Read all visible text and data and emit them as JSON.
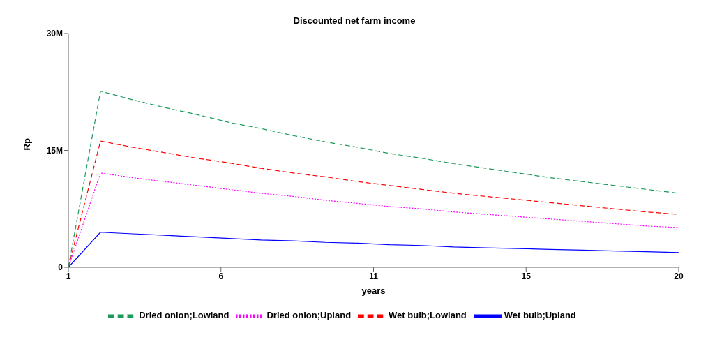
{
  "chart_data": {
    "type": "line",
    "title": "Discounted net farm income",
    "xlabel": "years",
    "ylabel": "Rp",
    "x": [
      1,
      2,
      3,
      4,
      5,
      6,
      7,
      8,
      9,
      10,
      11,
      12,
      13,
      14,
      15,
      16,
      17,
      18,
      19,
      20
    ],
    "series": [
      {
        "name": "Wet bulb;Upland",
        "color": "#0000ff",
        "line_style": "solid",
        "values": [
          0,
          4500000,
          4300000,
          4100000,
          3900000,
          3700000,
          3500000,
          3400000,
          3200000,
          3100000,
          2900000,
          2800000,
          2600000,
          2500000,
          2400000,
          2300000,
          2200000,
          2100000,
          2000000,
          1900000
        ]
      },
      {
        "name": "Wet bulb;Lowland",
        "color": "#ff0000",
        "line_style": "dashed",
        "values": [
          0,
          16200000,
          15400000,
          14700000,
          14000000,
          13400000,
          12700000,
          12100000,
          11600000,
          11000000,
          10500000,
          10000000,
          9500000,
          9100000,
          8700000,
          8300000,
          7900000,
          7500000,
          7100000,
          6800000
        ]
      },
      {
        "name": "Dried onion;Upland",
        "color": "#ff00ff",
        "line_style": "dotted",
        "values": [
          0,
          12100000,
          11500000,
          11000000,
          10500000,
          10000000,
          9500000,
          9100000,
          8600000,
          8200000,
          7800000,
          7500000,
          7100000,
          6800000,
          6500000,
          6200000,
          5900000,
          5600000,
          5300000,
          5100000
        ]
      },
      {
        "name": "Dried onion;Lowland",
        "color": "#1a9b5a",
        "line_style": "dashed",
        "values": [
          0,
          22600000,
          21500000,
          20500000,
          19600000,
          18600000,
          17800000,
          16900000,
          16100000,
          15400000,
          14600000,
          14000000,
          13300000,
          12700000,
          12100000,
          11500000,
          11000000,
          10500000,
          10000000,
          9500000
        ]
      }
    ],
    "xlim": [
      1,
      20
    ],
    "xticks": [
      1,
      {
        "value": 5.75,
        "label": "6"
      },
      {
        "value": 10.5,
        "label": "11"
      },
      {
        "value": 15.25,
        "label": "15"
      },
      20
    ],
    "ylim": [
      0,
      30000000
    ],
    "yticks": [
      0,
      {
        "value": 15000000,
        "label": "15M"
      },
      {
        "value": 30000000,
        "label": "30M"
      }
    ],
    "grid": false,
    "legend": "bottom",
    "marker": "none"
  }
}
